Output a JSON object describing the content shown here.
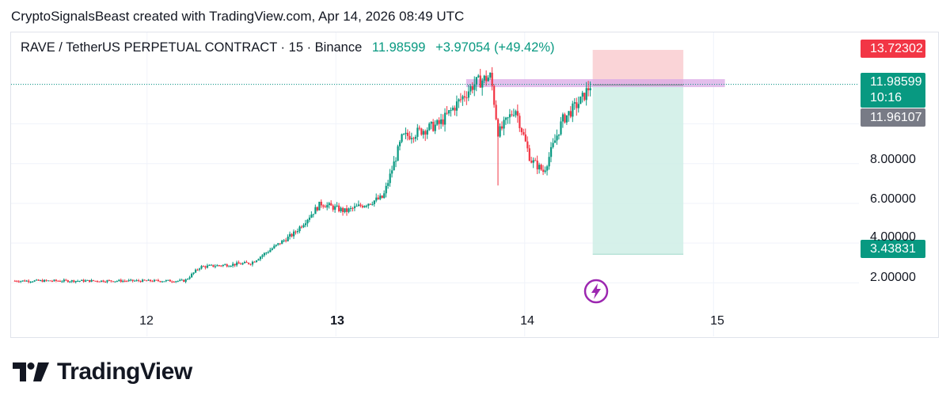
{
  "header": {
    "attribution": "CryptoSignalsBeast created with TradingView.com, Apr 14, 2026 08:49 UTC"
  },
  "legend": {
    "symbol": "RAVE / TetherUS PERPETUAL CONTRACT · 15 · Binance",
    "last": "11.98599",
    "change": "+3.97054 (+49.42%)"
  },
  "price_labels": {
    "stop": "13.72302",
    "current": "11.98599",
    "countdown": "10:16",
    "entry": "11.96107",
    "target": "3.43831"
  },
  "colors": {
    "up": "#089981",
    "down": "#f23645",
    "stop_zone": "#f8c5ca",
    "target_zone": "#cfeee6",
    "resistance": "#d9a8e6",
    "entry_label": "#787b86",
    "bolt": "#9c27b0"
  },
  "icons": {
    "bolt": "lightning-bolt-icon",
    "logo": "tradingview-logo-icon"
  },
  "logo_text": "TradingView",
  "chart_data": {
    "type": "candlestick",
    "title": "RAVE / TetherUS PERPETUAL CONTRACT · 15 · Binance",
    "interval": "15",
    "y_axis": {
      "scale": "linear",
      "ticks": [
        2,
        4,
        6,
        8
      ],
      "tick_labels": [
        "2.00000",
        "4.00000",
        "6.00000",
        "8.00000"
      ],
      "range": [
        0.9,
        14.6
      ]
    },
    "x_axis": {
      "tick_labels": [
        "12",
        "13",
        "14",
        "15"
      ],
      "range": [
        11.28,
        15.77
      ],
      "bold_label": "13"
    },
    "grid": true,
    "approx_close_path": [
      {
        "day": 11.3,
        "price": 2.1
      },
      {
        "day": 12.2,
        "price": 2.1
      },
      {
        "day": 12.28,
        "price": 2.8
      },
      {
        "day": 12.55,
        "price": 3.0
      },
      {
        "day": 12.78,
        "price": 4.5
      },
      {
        "day": 12.92,
        "price": 6.0
      },
      {
        "day": 13.05,
        "price": 5.6
      },
      {
        "day": 13.25,
        "price": 6.3
      },
      {
        "day": 13.35,
        "price": 9.3
      },
      {
        "day": 13.55,
        "price": 10.0
      },
      {
        "day": 13.73,
        "price": 12.0
      },
      {
        "day": 13.82,
        "price": 12.4
      },
      {
        "day": 13.86,
        "price": 9.5
      },
      {
        "day": 13.95,
        "price": 10.8
      },
      {
        "day": 14.03,
        "price": 8.2
      },
      {
        "day": 14.1,
        "price": 7.6
      },
      {
        "day": 14.2,
        "price": 10.2
      },
      {
        "day": 14.3,
        "price": 11.2
      },
      {
        "day": 14.35,
        "price": 12.0
      }
    ],
    "wicks": [
      {
        "day": 13.86,
        "low": 6.9
      },
      {
        "day": 13.82,
        "high": 12.6
      }
    ],
    "overlays": {
      "resistance_zone": {
        "low": 11.85,
        "high": 12.25
      },
      "short_position": {
        "entry": 11.96107,
        "stop": 13.72302,
        "target": 3.43831,
        "start_day": 14.36,
        "end_day": 14.84
      },
      "last_price_line": 11.98599
    }
  }
}
